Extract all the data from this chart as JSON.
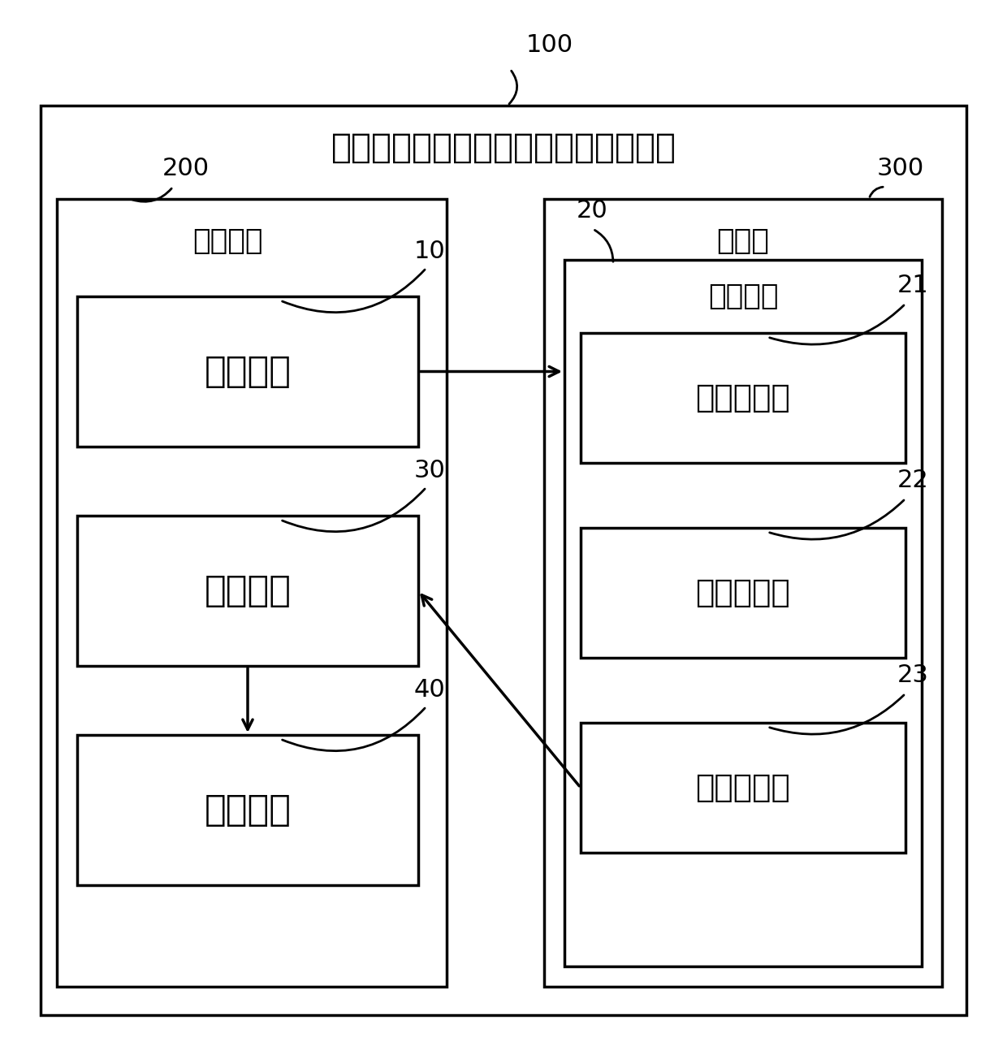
{
  "title": "基于通信终端与电视机多屏互动的系统",
  "label_100": "100",
  "label_200": "200",
  "label_300": "300",
  "label_10": "10",
  "label_20": "20",
  "label_21": "21",
  "label_22": "22",
  "label_23": "23",
  "label_30": "30",
  "label_40": "40",
  "text_comm_terminal": "通信终端",
  "text_tv": "电视机",
  "text_switch": "切换模块",
  "text_screen": "筛选模块",
  "text_detect": "检测子模块",
  "text_parse": "解析子模块",
  "text_send": "发送子模块",
  "text_display": "显示模块",
  "text_trigger": "触发模块",
  "bg_color": "#ffffff",
  "box_color": "#000000",
  "text_color": "#000000"
}
